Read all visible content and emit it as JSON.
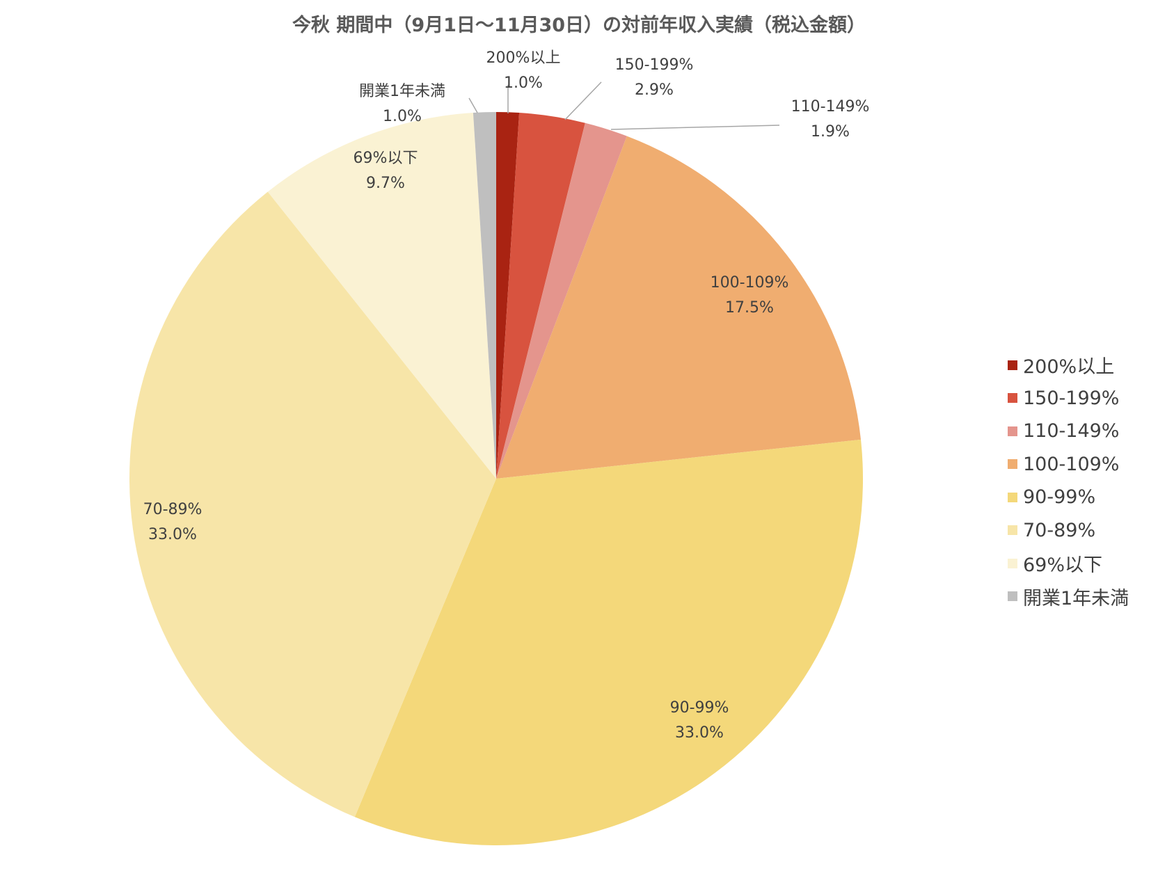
{
  "chart_data": {
    "type": "pie",
    "title": "今秋 期間中（9月1日～11月30日）の対前年収入実績（税込金額）",
    "legend_position": "right",
    "slices": [
      {
        "name": "200%以上",
        "value": 1.0,
        "value_label": "1.0%",
        "color": "#A92312"
      },
      {
        "name": "150-199%",
        "value": 2.9,
        "value_label": "2.9%",
        "color": "#D8533F"
      },
      {
        "name": "110-149%",
        "value": 1.9,
        "value_label": "1.9%",
        "color": "#E4958D"
      },
      {
        "name": "100-109%",
        "value": 17.5,
        "value_label": "17.5%",
        "color": "#F0AD70"
      },
      {
        "name": "90-99%",
        "value": 33.0,
        "value_label": "33.0%",
        "color": "#F4D87A"
      },
      {
        "name": "70-89%",
        "value": 33.0,
        "value_label": "33.0%",
        "color": "#F7E5A8"
      },
      {
        "name": "69%以下",
        "value": 9.7,
        "value_label": "9.7%",
        "color": "#FAF2D3"
      },
      {
        "name": "開業1年未満",
        "value": 1.0,
        "value_label": "1.0%",
        "color": "#BFBFBF"
      }
    ]
  }
}
